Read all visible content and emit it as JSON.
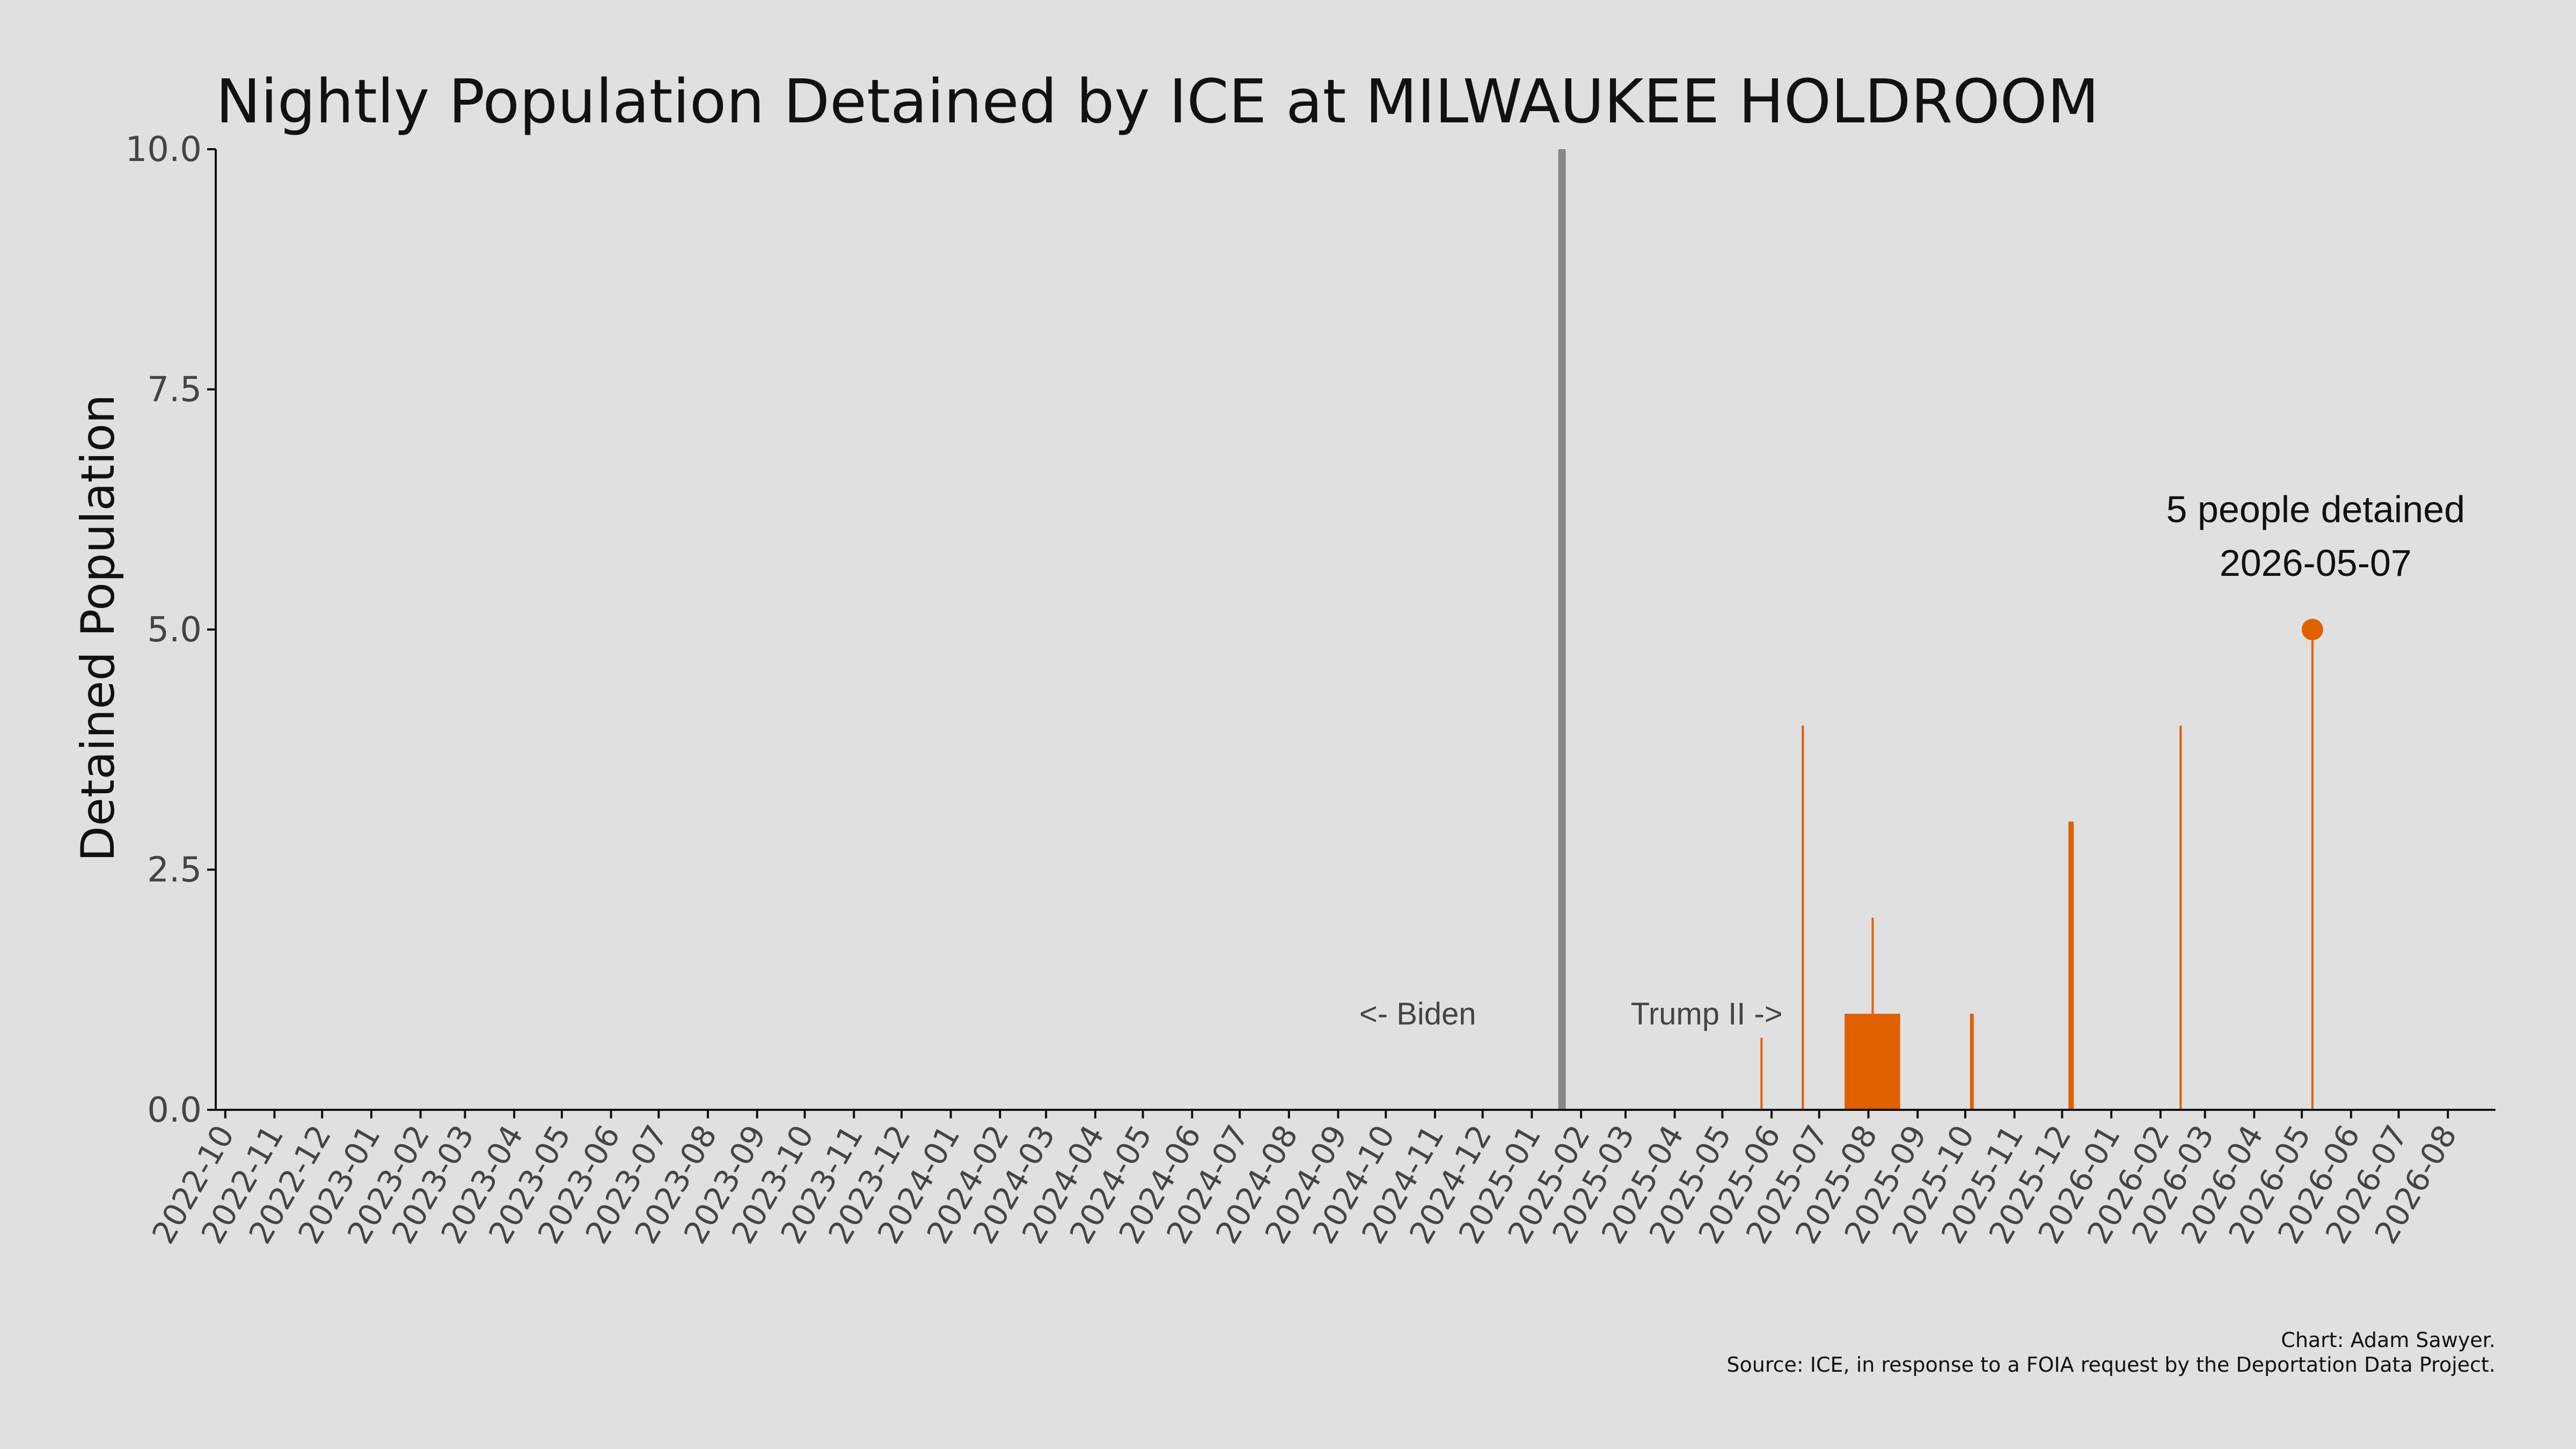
{
  "chart_data": {
    "type": "bar",
    "title": "Nightly Population Detained by ICE at MILWAUKEE HOLDROOM",
    "ylabel": "Detained Population",
    "xlabel": "",
    "ylim": [
      0,
      10
    ],
    "xlim": [
      "2022-09-25",
      "2026-08-31"
    ],
    "yticks": [
      "0.0",
      "2.5",
      "5.0",
      "7.5",
      "10.0"
    ],
    "xticks": [
      "2022-10",
      "2022-11",
      "2022-12",
      "2023-01",
      "2023-02",
      "2023-03",
      "2023-04",
      "2023-05",
      "2023-06",
      "2023-07",
      "2023-08",
      "2023-09",
      "2023-10",
      "2023-11",
      "2023-12",
      "2024-01",
      "2024-02",
      "2024-03",
      "2024-04",
      "2024-05",
      "2024-06",
      "2024-07",
      "2024-08",
      "2024-09",
      "2024-10",
      "2024-11",
      "2024-12",
      "2025-01",
      "2025-02",
      "2025-03",
      "2025-04",
      "2025-05",
      "2025-06",
      "2025-07",
      "2025-08",
      "2025-09",
      "2025-10",
      "2025-11",
      "2025-12",
      "2026-01",
      "2026-02",
      "2026-03",
      "2026-04",
      "2026-05",
      "2026-06",
      "2026-07",
      "2026-08"
    ],
    "grid": false,
    "bar_color": "#e06000",
    "divider_color": "#888888",
    "divider_date": "2025-01-20",
    "eras": {
      "before": "<- Biden",
      "after": "Trump II ->"
    },
    "bars": [
      {
        "date": "2025-05-25",
        "value": 0.75
      },
      {
        "date": "2025-06-20",
        "value": 4
      },
      {
        "date": "2025-07-17",
        "value": 1,
        "end": "2025-08-21"
      },
      {
        "date": "2025-08-03",
        "value": 2
      },
      {
        "date": "2025-10-04",
        "value": 1
      },
      {
        "date": "2025-10-05",
        "value": 1
      },
      {
        "date": "2025-12-05",
        "value": 3
      },
      {
        "date": "2025-12-06",
        "value": 3
      },
      {
        "date": "2025-12-07",
        "value": 3
      },
      {
        "date": "2026-02-13",
        "value": 4
      },
      {
        "date": "2026-05-07",
        "value": 5
      }
    ],
    "highlight": {
      "date": "2026-05-07",
      "value": 5,
      "label_line1": "5 people detained",
      "label_line2": "2026-05-07"
    },
    "credits": [
      "Chart: Adam Sawyer.",
      "Source: ICE, in response to a FOIA request by the Deportation Data Project."
    ]
  }
}
